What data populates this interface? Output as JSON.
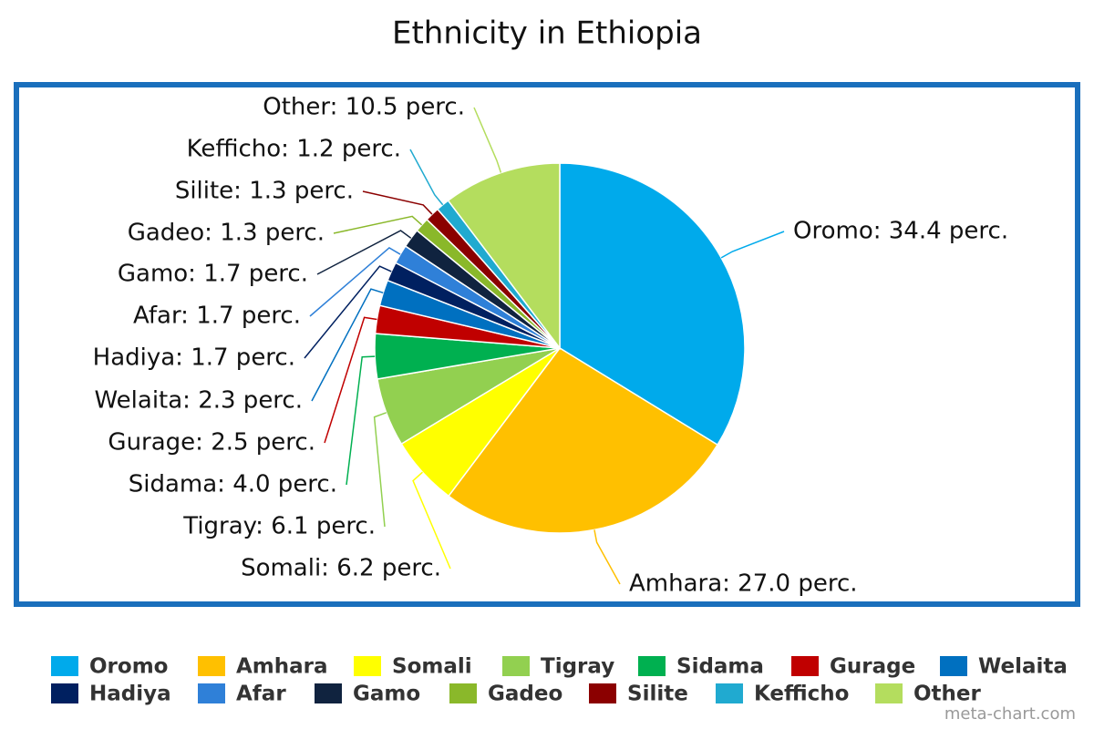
{
  "chart_data": {
    "type": "pie",
    "title": "Ethnicity in Ethiopia",
    "categories": [
      "Oromo",
      "Amhara",
      "Somali",
      "Tigray",
      "Sidama",
      "Gurage",
      "Welaita",
      "Hadiya",
      "Afar",
      "Gamo",
      "Gadeo",
      "Silite",
      "Kefficho",
      "Other"
    ],
    "values": [
      34.4,
      27.0,
      6.2,
      6.1,
      4.0,
      2.5,
      2.3,
      1.7,
      1.7,
      1.7,
      1.3,
      1.3,
      1.2,
      10.5
    ],
    "value_labels": [
      "Oromo: 34.4 perc.",
      "Amhara: 27.0 perc.",
      "Somali: 6.2 perc.",
      "Tigray: 6.1 perc.",
      "Sidama: 4.0 perc.",
      "Gurage: 2.5 perc.",
      "Welaita: 2.3 perc.",
      "Hadiya: 1.7 perc.",
      "Afar: 1.7 perc.",
      "Gamo: 1.7 perc.",
      "Gadeo: 1.3 perc.",
      "Silite: 1.3 perc.",
      "Kefficho: 1.2 perc.",
      "Other: 10.5 perc."
    ],
    "colors": [
      "#00aaeb",
      "#ffc000",
      "#ffff00",
      "#92d050",
      "#00b050",
      "#c00000",
      "#0070c0",
      "#002060",
      "#2f80d8",
      "#10233f",
      "#8ab82a",
      "#8b0000",
      "#20aad0",
      "#b4dd5e"
    ],
    "legend": "bottom",
    "watermark": "meta-chart.com"
  }
}
